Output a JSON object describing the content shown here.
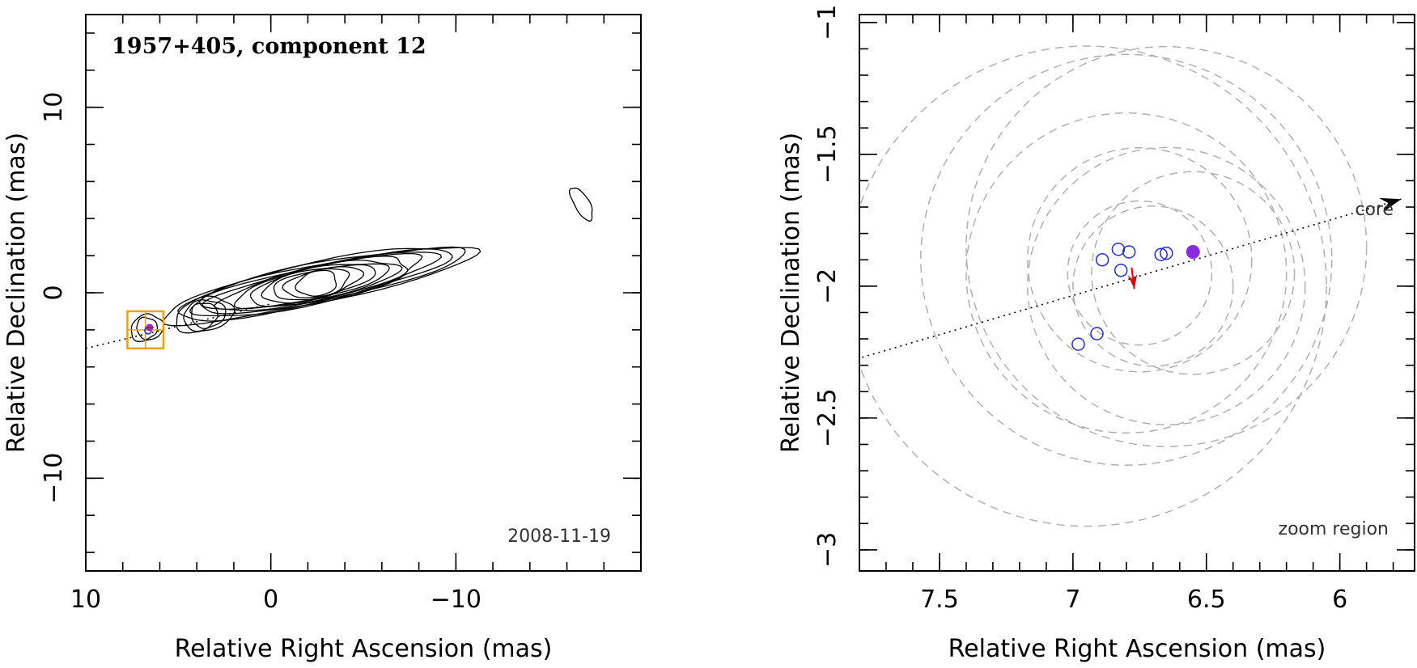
{
  "chart_data": [
    {
      "type": "contour",
      "title": "1957+405, component 12",
      "date": "2008-11-19",
      "xlabel": "Relative Right Ascension (mas)",
      "ylabel": "Relative Declination (mas)",
      "xlim": [
        10,
        -20
      ],
      "ylim": [
        -15,
        15
      ],
      "x_ticks": [
        10,
        0,
        -10
      ],
      "x_tick_labels": [
        "10",
        "0",
        "−10"
      ],
      "y_ticks": [
        10,
        0,
        -10
      ],
      "y_tick_labels": [
        "10",
        "0",
        "−10"
      ],
      "jet_axis": {
        "x": [
          10,
          0
        ],
        "y": [
          -3.0,
          -0.6
        ]
      },
      "zoom_box": {
        "x": [
          7.75,
          5.8
        ],
        "y": [
          -3.0,
          -1.0
        ]
      },
      "marked_component": {
        "x": 6.55,
        "y": -1.87
      },
      "contour_sets": [
        {
          "name": "main-jet",
          "cx": -2.5,
          "cy": 0.5,
          "rx": 8.6,
          "ry": 1.1,
          "angle": 12,
          "levels": 12
        },
        {
          "name": "inner-knot",
          "cx": 3.6,
          "cy": -1.2,
          "rx": 1.6,
          "ry": 0.9,
          "angle": 15,
          "levels": 3
        },
        {
          "name": "component-12",
          "cx": 6.7,
          "cy": -1.9,
          "rx": 0.9,
          "ry": 0.7,
          "angle": 20,
          "levels": 2
        },
        {
          "name": "outer-blob",
          "cx": -16.8,
          "cy": 4.8,
          "rx": 1.0,
          "ry": 0.4,
          "angle": -60,
          "levels": 1
        }
      ]
    },
    {
      "type": "scatter",
      "annotation": "zoom region",
      "core_label": "core",
      "xlabel": "Relative Right Ascension (mas)",
      "ylabel": "Relative Declination (mas)",
      "xlim": [
        7.8,
        5.72
      ],
      "ylim": [
        -3.08,
        -0.97
      ],
      "x_ticks": [
        7.5,
        7,
        6.5,
        6
      ],
      "x_tick_labels": [
        "7.5",
        "7",
        "6.5",
        "6"
      ],
      "y_ticks": [
        -1,
        -1.5,
        -2,
        -2.5,
        -3
      ],
      "y_tick_labels": [
        "−1",
        "−1.5",
        "−2",
        "−2.5",
        "−3"
      ],
      "open_points": [
        {
          "x": 6.89,
          "y": -1.9
        },
        {
          "x": 6.83,
          "y": -1.86
        },
        {
          "x": 6.79,
          "y": -1.87
        },
        {
          "x": 6.82,
          "y": -1.94
        },
        {
          "x": 6.67,
          "y": -1.88
        },
        {
          "x": 6.65,
          "y": -1.875
        },
        {
          "x": 6.91,
          "y": -2.18
        },
        {
          "x": 6.98,
          "y": -2.22
        }
      ],
      "filled_point": {
        "x": 6.55,
        "y": -1.87
      },
      "motion_arrow": {
        "x0": 6.78,
        "y0": -1.93,
        "x1": 6.77,
        "y1": -2.01
      },
      "jet_axis": {
        "x0": 7.79,
        "y0": -2.27,
        "x1": 5.77,
        "y1": -1.67
      },
      "uncertainty_circles": [
        {
          "x": 6.95,
          "y": -2.0,
          "r": 0.9
        },
        {
          "x": 6.8,
          "y": -1.9,
          "r": 0.77
        },
        {
          "x": 6.65,
          "y": -1.85,
          "r": 0.75
        },
        {
          "x": 6.8,
          "y": -1.95,
          "r": 0.6
        },
        {
          "x": 6.65,
          "y": -2.0,
          "r": 0.52
        },
        {
          "x": 6.75,
          "y": -1.9,
          "r": 0.42
        },
        {
          "x": 6.55,
          "y": -1.95,
          "r": 0.38
        },
        {
          "x": 6.7,
          "y": -2.0,
          "r": 0.3
        },
        {
          "x": 6.75,
          "y": -1.95,
          "r": 0.27
        }
      ]
    }
  ]
}
